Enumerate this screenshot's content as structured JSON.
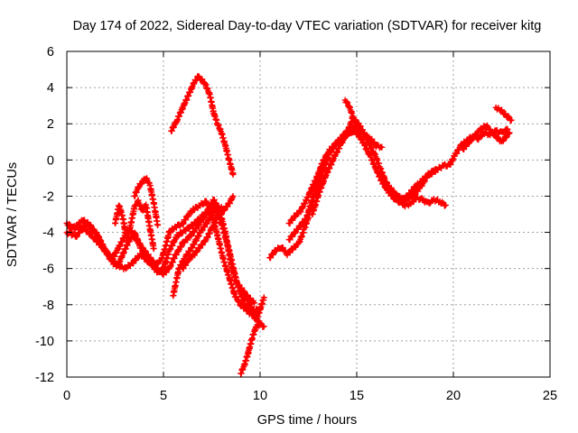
{
  "chart_data": {
    "type": "scatter",
    "title": "Day 174 of 2022, Sidereal Day-to-day VTEC variation (SDTVAR) for receiver kitg",
    "xlabel": "GPS time / hours",
    "ylabel": "SDTVAR / TECUs",
    "xlim": [
      0,
      25
    ],
    "ylim": [
      -12,
      6
    ],
    "xticks": [
      0,
      5,
      10,
      15,
      20,
      25
    ],
    "yticks": [
      -12,
      -10,
      -8,
      -6,
      -4,
      -2,
      0,
      2,
      4,
      6
    ],
    "grid": true,
    "marker": "+",
    "series": [
      {
        "name": "trace-a",
        "color": "#ff0000",
        "x": [
          0.0,
          0.4,
          0.8,
          1.2,
          1.6,
          2.0,
          2.4,
          2.7,
          3.0,
          3.3,
          3.6,
          4.0,
          4.3,
          4.6,
          4.9,
          5.1,
          5.3,
          5.6,
          6.0,
          6.3,
          6.6,
          6.9,
          7.2,
          7.5,
          7.8,
          8.1,
          8.4,
          8.7,
          9.0,
          9.3,
          9.6,
          10.0
        ],
        "y": [
          -3.5,
          -3.8,
          -3.3,
          -3.6,
          -4.2,
          -5.1,
          -5.4,
          -4.8,
          -4.2,
          -3.9,
          -4.4,
          -5.0,
          -5.4,
          -5.8,
          -5.5,
          -4.8,
          -4.0,
          -3.7,
          -3.5,
          -3.0,
          -2.7,
          -2.5,
          -2.3,
          -3.0,
          -4.2,
          -5.5,
          -6.5,
          -7.5,
          -8.0,
          -8.3,
          -8.6,
          -9.0
        ]
      },
      {
        "name": "trace-b",
        "color": "#ff0000",
        "x": [
          0.0,
          0.5,
          1.0,
          1.5,
          2.0,
          2.3,
          2.6,
          2.9,
          3.2,
          3.5,
          3.8,
          4.1,
          4.4,
          4.7,
          5.0,
          5.3,
          5.7,
          6.1,
          6.5,
          6.9,
          7.3,
          7.6,
          7.9,
          8.2,
          8.5,
          8.8,
          9.1,
          9.4,
          9.7
        ],
        "y": [
          -4.0,
          -4.2,
          -3.5,
          -4.0,
          -5.0,
          -5.6,
          -5.9,
          -5.2,
          -4.5,
          -4.0,
          -4.8,
          -5.4,
          -5.8,
          -6.2,
          -6.0,
          -5.0,
          -4.2,
          -3.9,
          -3.6,
          -3.2,
          -2.8,
          -2.2,
          -2.8,
          -4.0,
          -5.8,
          -6.8,
          -7.2,
          -7.6,
          -7.9
        ]
      },
      {
        "name": "trace-c",
        "color": "#ff0000",
        "x": [
          0.2,
          0.6,
          1.0,
          1.4,
          1.8,
          2.2,
          2.6,
          3.0,
          3.4,
          3.8,
          4.2,
          4.6,
          5.0,
          5.3,
          5.6,
          6.0,
          6.4,
          6.8,
          7.2,
          7.6,
          8.0,
          8.4,
          8.8,
          9.2,
          9.6,
          10.0
        ],
        "y": [
          -3.8,
          -3.6,
          -3.9,
          -4.3,
          -4.8,
          -5.3,
          -5.8,
          -6.0,
          -5.7,
          -5.2,
          -5.6,
          -6.0,
          -6.3,
          -6.0,
          -5.3,
          -4.6,
          -4.2,
          -3.6,
          -3.0,
          -2.5,
          -3.5,
          -5.0,
          -6.8,
          -8.0,
          -8.4,
          -8.2
        ]
      },
      {
        "name": "trace-d",
        "color": "#ff0000",
        "x": [
          2.5,
          2.7,
          2.9,
          3.1,
          3.3,
          3.5,
          3.7,
          3.9,
          4.1,
          4.3,
          4.5
        ],
        "y": [
          -3.5,
          -2.5,
          -3.2,
          -4.4,
          -3.6,
          -2.6,
          -2.3,
          -2.8,
          -2.5,
          -3.8,
          -4.9
        ]
      },
      {
        "name": "trace-e",
        "color": "#ff0000",
        "x": [
          5.5,
          5.8,
          6.1,
          6.5,
          6.9,
          7.3,
          7.6,
          8.0
        ],
        "y": [
          -7.5,
          -6.0,
          -5.4,
          -4.8,
          -4.0,
          -3.4,
          -2.8,
          -2.6
        ]
      },
      {
        "name": "trace-f",
        "color": "#ff0000",
        "x": [
          3.5,
          3.7,
          3.9,
          4.1,
          4.3,
          4.5,
          4.7
        ],
        "y": [
          -2.0,
          -1.5,
          -1.2,
          -1.0,
          -1.4,
          -2.4,
          -3.6
        ]
      },
      {
        "name": "trace-g",
        "color": "#ff0000",
        "x": [
          6.0,
          6.3,
          6.6,
          6.9,
          7.2,
          7.5,
          7.8,
          8.1,
          8.4,
          8.6
        ],
        "y": [
          -6.0,
          -5.5,
          -5.2,
          -4.8,
          -4.4,
          -3.8,
          -3.2,
          -2.8,
          -2.4,
          -2.0
        ]
      },
      {
        "name": "trace-h",
        "color": "#ff0000",
        "x": [
          5.4,
          5.7,
          6.0,
          6.3,
          6.6,
          6.8,
          7.0,
          7.2,
          7.4,
          7.6,
          7.8,
          8.0,
          8.2,
          8.4,
          8.6
        ],
        "y": [
          1.6,
          2.2,
          2.9,
          3.6,
          4.3,
          4.6,
          4.4,
          4.1,
          3.6,
          2.6,
          2.0,
          1.5,
          0.8,
          0.0,
          -0.8
        ]
      },
      {
        "name": "trace-i",
        "color": "#ff0000",
        "x": [
          9.0,
          9.2,
          9.4,
          9.6,
          9.8,
          10.0,
          10.2
        ],
        "y": [
          -11.8,
          -11.3,
          -10.6,
          -9.8,
          -9.2,
          -9.1,
          -9.2
        ]
      },
      {
        "name": "trace-j",
        "color": "#ff0000",
        "x": [
          9.0,
          9.3,
          9.6,
          9.9,
          10.2
        ],
        "y": [
          -7.3,
          -7.6,
          -8.2,
          -8.6,
          -7.6
        ]
      },
      {
        "name": "trace-k",
        "color": "#ff0000",
        "x": [
          10.5,
          10.8,
          11.1,
          11.4,
          11.7,
          12.0,
          12.3,
          12.6,
          12.9,
          13.2,
          13.5,
          13.8,
          14.1,
          14.4,
          14.7,
          15.0,
          15.3,
          15.6,
          15.9,
          16.2,
          16.5,
          16.8,
          17.1,
          17.4,
          17.7,
          18.0,
          18.3,
          18.6,
          18.9,
          19.2,
          19.5,
          19.8,
          20.1,
          20.4,
          20.7,
          21.0,
          21.3,
          21.6,
          21.9,
          22.2,
          22.5,
          22.8
        ],
        "y": [
          -5.4,
          -5.0,
          -4.8,
          -5.2,
          -4.9,
          -4.6,
          -3.8,
          -2.8,
          -1.5,
          -0.2,
          0.4,
          0.8,
          1.1,
          1.5,
          1.7,
          1.9,
          1.6,
          1.0,
          0.4,
          -0.4,
          -1.2,
          -1.8,
          -2.0,
          -2.2,
          -1.9,
          -1.5,
          -1.2,
          -0.9,
          -0.7,
          -0.5,
          -0.3,
          -0.3,
          0.3,
          0.8,
          1.1,
          1.3,
          1.2,
          1.5,
          1.4,
          1.6,
          1.5,
          1.7
        ]
      },
      {
        "name": "trace-l",
        "color": "#ff0000",
        "x": [
          11.5,
          11.8,
          12.1,
          12.4,
          12.7,
          13.0,
          13.3,
          13.6,
          13.9,
          14.2,
          14.5,
          14.8,
          15.1,
          15.4,
          15.7,
          16.0,
          16.3,
          16.6,
          16.9,
          17.2,
          17.5,
          17.8,
          18.1,
          18.4,
          18.7,
          19.0,
          19.3,
          19.6
        ],
        "y": [
          -4.4,
          -4.0,
          -3.6,
          -3.2,
          -2.2,
          -1.4,
          -0.5,
          0.4,
          0.8,
          1.2,
          1.4,
          1.6,
          1.4,
          0.8,
          0.2,
          -0.5,
          -1.2,
          -1.7,
          -2.1,
          -2.3,
          -2.5,
          -2.4,
          -2.1,
          -2.2,
          -2.4,
          -2.2,
          -2.3,
          -2.5
        ]
      },
      {
        "name": "trace-m",
        "color": "#ff0000",
        "x": [
          11.5,
          11.8,
          12.1,
          12.4,
          12.7,
          13.0,
          13.3
        ],
        "y": [
          -3.5,
          -3.1,
          -2.8,
          -2.2,
          -1.5,
          -0.8,
          0.0
        ]
      },
      {
        "name": "trace-n",
        "color": "#ff0000",
        "x": [
          12.7,
          13.0,
          13.3,
          13.6,
          13.9,
          14.2,
          14.5,
          14.8,
          15.1,
          15.4,
          15.7,
          16.0,
          16.3
        ],
        "y": [
          -3.0,
          -2.0,
          -1.1,
          -0.4,
          0.3,
          0.9,
          1.5,
          2.3,
          2.0,
          1.4,
          1.2,
          0.8,
          0.7
        ]
      },
      {
        "name": "trace-o",
        "color": "#ff0000",
        "x": [
          14.4,
          14.6,
          14.8,
          15.0,
          15.2
        ],
        "y": [
          3.3,
          3.0,
          2.4,
          1.9,
          1.5
        ]
      },
      {
        "name": "trace-p",
        "color": "#ff0000",
        "x": [
          16.3,
          16.7,
          17.1,
          17.5,
          17.9,
          18.3,
          18.7,
          19.1
        ],
        "y": [
          -1.0,
          -1.5,
          -2.0,
          -2.2,
          -2.0,
          -1.5,
          -0.8,
          -0.5
        ]
      },
      {
        "name": "trace-q",
        "color": "#ff0000",
        "x": [
          20.5,
          20.9,
          21.3,
          21.7,
          22.1,
          22.5,
          22.9
        ],
        "y": [
          0.6,
          1.1,
          1.6,
          1.9,
          1.4,
          1.0,
          1.5
        ]
      },
      {
        "name": "trace-r",
        "color": "#ff0000",
        "x": [
          22.2,
          22.4,
          22.6,
          22.8,
          23.0
        ],
        "y": [
          2.9,
          2.8,
          2.6,
          2.4,
          2.2
        ]
      }
    ]
  }
}
